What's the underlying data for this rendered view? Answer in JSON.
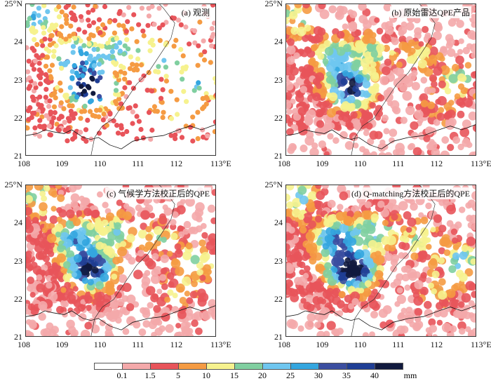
{
  "panels": [
    {
      "id": "a",
      "label": "(a) 观测",
      "type": "stations"
    },
    {
      "id": "b",
      "label": "(b) 原始雷达QPE产品",
      "type": "field"
    },
    {
      "id": "c",
      "label": "(c) 气候学方法校正后的QPE",
      "type": "field"
    },
    {
      "id": "d",
      "label": "(d) Q-matching方法校正后的QPE",
      "type": "field"
    }
  ],
  "axes": {
    "x_ticks": [
      "108",
      "109",
      "110",
      "111",
      "112",
      "113°E"
    ],
    "y_ticks": [
      "25°N",
      "24",
      "23",
      "22",
      "21"
    ],
    "lon_range": [
      108,
      113
    ],
    "lat_range": [
      21,
      25
    ]
  },
  "colorbar": {
    "unit": "mm",
    "levels": [
      "0.1",
      "1.5",
      "5",
      "10",
      "15",
      "20",
      "25",
      "30",
      "35",
      "40"
    ],
    "colors": [
      "#ffffff",
      "#f4a9aa",
      "#e8545a",
      "#f59b43",
      "#f6f28e",
      "#80cfa0",
      "#6fc6ef",
      "#34a6df",
      "#3b4ea0",
      "#1f3e95",
      "#111a3e"
    ]
  }
}
